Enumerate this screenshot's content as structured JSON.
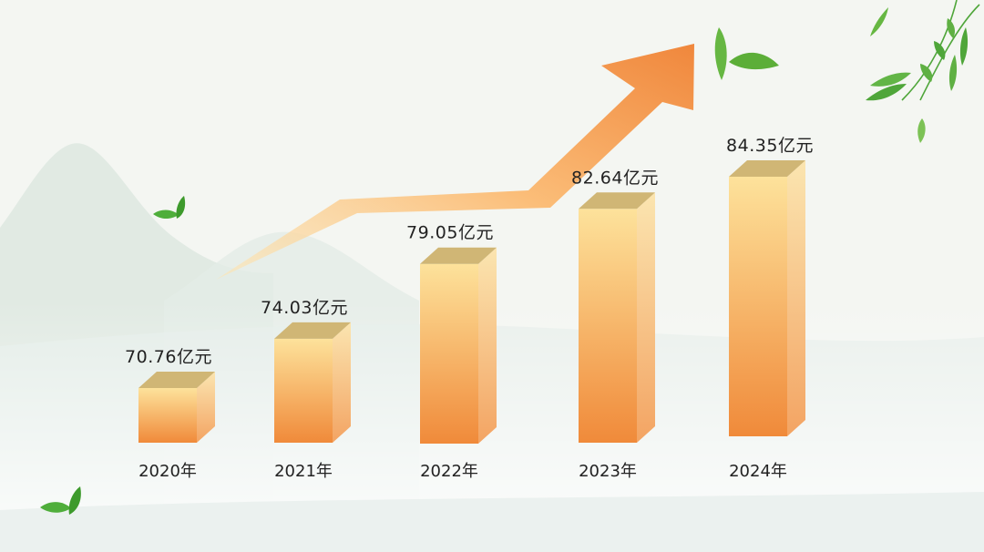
{
  "chart_data": {
    "type": "bar",
    "categories": [
      "2020年",
      "2021年",
      "2022年",
      "2023年",
      "2024年"
    ],
    "values": [
      70.76,
      74.03,
      79.05,
      82.64,
      84.35
    ],
    "value_labels": [
      "70.76亿元",
      "74.03亿元",
      "79.05亿元",
      "82.64亿元",
      "84.35亿元"
    ],
    "unit": "亿元",
    "title": "",
    "xlabel": "",
    "ylabel": "",
    "ylim": [
      0,
      90
    ],
    "grid": false,
    "legend": "none",
    "style": "3d-column",
    "trend_arrow": "up",
    "colors": {
      "bar_top": "#fde29b",
      "bar_bottom": "#f08a3a",
      "bar_cap": "#d0b675",
      "bar_side_top": "#fbe5b0",
      "bar_side_bottom": "#f3a463",
      "arrow": "#f0873c",
      "text": "#222222",
      "background": "#f4f6f2",
      "mountain": "#dfe9e3",
      "leaf": "#4fae3b"
    }
  }
}
